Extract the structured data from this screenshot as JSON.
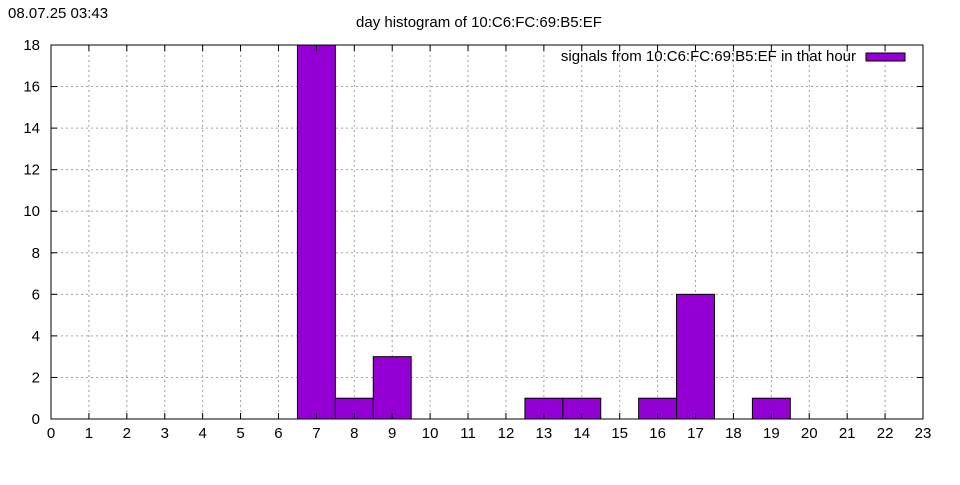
{
  "timestamp": "08.07.25 03:43",
  "chart_data": {
    "type": "bar",
    "title": "day histogram of 10:C6:FC:69:B5:EF",
    "xlabel": "",
    "ylabel": "",
    "x": [
      0,
      1,
      2,
      3,
      4,
      5,
      6,
      7,
      8,
      9,
      10,
      11,
      12,
      13,
      14,
      15,
      16,
      17,
      18,
      19,
      20,
      21,
      22,
      23
    ],
    "categories": [
      "0",
      "1",
      "2",
      "3",
      "4",
      "5",
      "6",
      "7",
      "8",
      "9",
      "10",
      "11",
      "12",
      "13",
      "14",
      "15",
      "16",
      "17",
      "18",
      "19",
      "20",
      "21",
      "22",
      "23"
    ],
    "series": [
      {
        "name": "signals from 10:C6:FC:69:B5:EF in that hour",
        "color": "#9400d3",
        "values": [
          0,
          0,
          0,
          0,
          0,
          0,
          0,
          18,
          1,
          3,
          0,
          0,
          0,
          1,
          1,
          0,
          1,
          6,
          0,
          1,
          0,
          0,
          0,
          0
        ]
      }
    ],
    "xlim": [
      0,
      23
    ],
    "ylim": [
      0,
      18
    ],
    "yticks": [
      0,
      2,
      4,
      6,
      8,
      10,
      12,
      14,
      16,
      18
    ],
    "grid": true,
    "legend_position": "top-right"
  }
}
